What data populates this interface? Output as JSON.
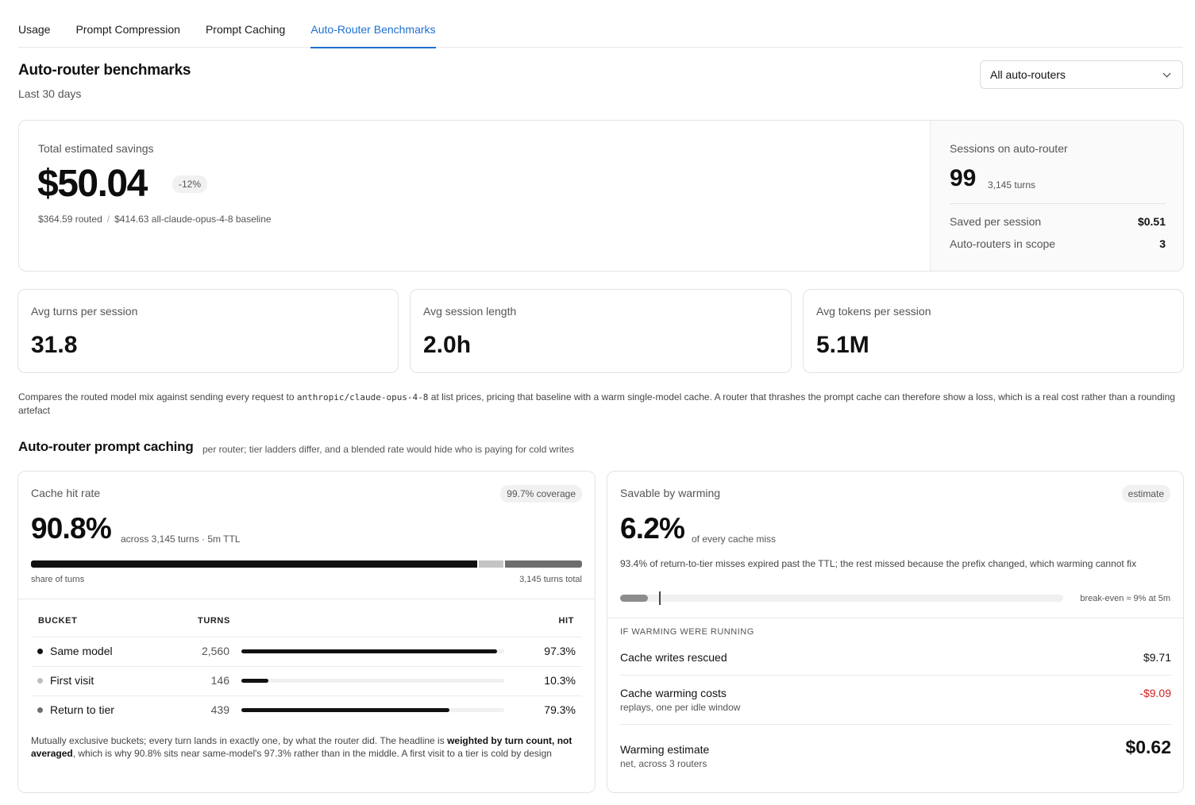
{
  "tabs": [
    {
      "label": "Usage",
      "active": false
    },
    {
      "label": "Prompt Compression",
      "active": false
    },
    {
      "label": "Prompt Caching",
      "active": false
    },
    {
      "label": "Auto-Router Benchmarks",
      "active": true
    }
  ],
  "header": {
    "title": "Auto-router benchmarks",
    "subtitle": "Last 30 days",
    "filter_value": "All auto-routers"
  },
  "savings": {
    "label": "Total estimated savings",
    "value": "$50.04",
    "change": "-12%",
    "routed": "$364.59 routed",
    "separator": "/",
    "baseline": "$414.63 all-claude-opus-4-8 baseline"
  },
  "sessions": {
    "label": "Sessions on auto-router",
    "count": "99",
    "turns": "3,145 turns",
    "saved_label": "Saved per session",
    "saved_value": "$0.51",
    "routers_label": "Auto-routers in scope",
    "routers_value": "3"
  },
  "stats": [
    {
      "label": "Avg turns per session",
      "value": "31.8"
    },
    {
      "label": "Avg session length",
      "value": "2.0h"
    },
    {
      "label": "Avg tokens per session",
      "value": "5.1M"
    }
  ],
  "note": {
    "before": "Compares the routed model mix against sending every request to ",
    "code": "anthropic/claude-opus-4-8",
    "after": " at list prices, pricing that baseline with a warm single-model cache. A router that thrashes the prompt cache can therefore show a loss, which is a real cost rather than a rounding artefact"
  },
  "caching_section": {
    "title": "Auto-router prompt caching",
    "subtitle": "per router; tier ladders differ, and a blended rate would hide who is paying for cold writes"
  },
  "cache_card": {
    "label": "Cache hit rate",
    "badge": "99.7% coverage",
    "value": "90.8%",
    "value_sub": "across 3,145 turns · 5m TTL",
    "stack": [
      {
        "name": "Same model",
        "share": 0.814,
        "color": "#111111"
      },
      {
        "name": "First visit",
        "share": 0.046,
        "color": "#c4c4c4"
      },
      {
        "name": "Return to tier",
        "share": 0.14,
        "color": "#6e6e6e"
      }
    ],
    "stack_left": "share of turns",
    "stack_right": "3,145 turns total",
    "columns": {
      "bucket": "BUCKET",
      "turns": "TURNS",
      "hit": "HIT"
    },
    "rows": [
      {
        "name": "Same model",
        "turns": "2,560",
        "hit": "97.3%",
        "hit_value": 97.3,
        "dot": "#111111",
        "fill": "#111111"
      },
      {
        "name": "First visit",
        "turns": "146",
        "hit": "10.3%",
        "hit_value": 10.3,
        "dot": "#bdbdbd",
        "fill": "#111111"
      },
      {
        "name": "Return to tier",
        "turns": "439",
        "hit": "79.3%",
        "hit_value": 79.3,
        "dot": "#6e6e6e",
        "fill": "#111111"
      }
    ],
    "footnote": {
      "a": "Mutually exclusive buckets; every turn lands in exactly one, by what the router did. The headline is ",
      "b": "weighted by turn count, not averaged",
      "c": ", which is why 90.8% sits near same-model's 97.3% rather than in the middle. A first visit to a tier is cold by design"
    }
  },
  "warming_card": {
    "label": "Savable by warming",
    "badge": "estimate",
    "value": "6.2%",
    "value_sub": "of every cache miss",
    "description": "93.4% of return-to-tier misses expired past the TTL; the rest missed because the prefix changed, which warming cannot fix",
    "bar_value": 6.2,
    "breakeven_value": 9,
    "breakeven_label": "break-even ≈ 9% at 5m",
    "section_label": "IF WARMING WERE RUNNING",
    "rescued_label": "Cache writes rescued",
    "rescued_value": "$9.71",
    "costs_label": "Cache warming costs",
    "costs_sub": "replays, one per idle window",
    "costs_value": "-$9.09",
    "estimate_label": "Warming estimate",
    "estimate_sub": "net, across 3 routers",
    "estimate_value": "$0.62",
    "negative_color": "#d42020"
  }
}
